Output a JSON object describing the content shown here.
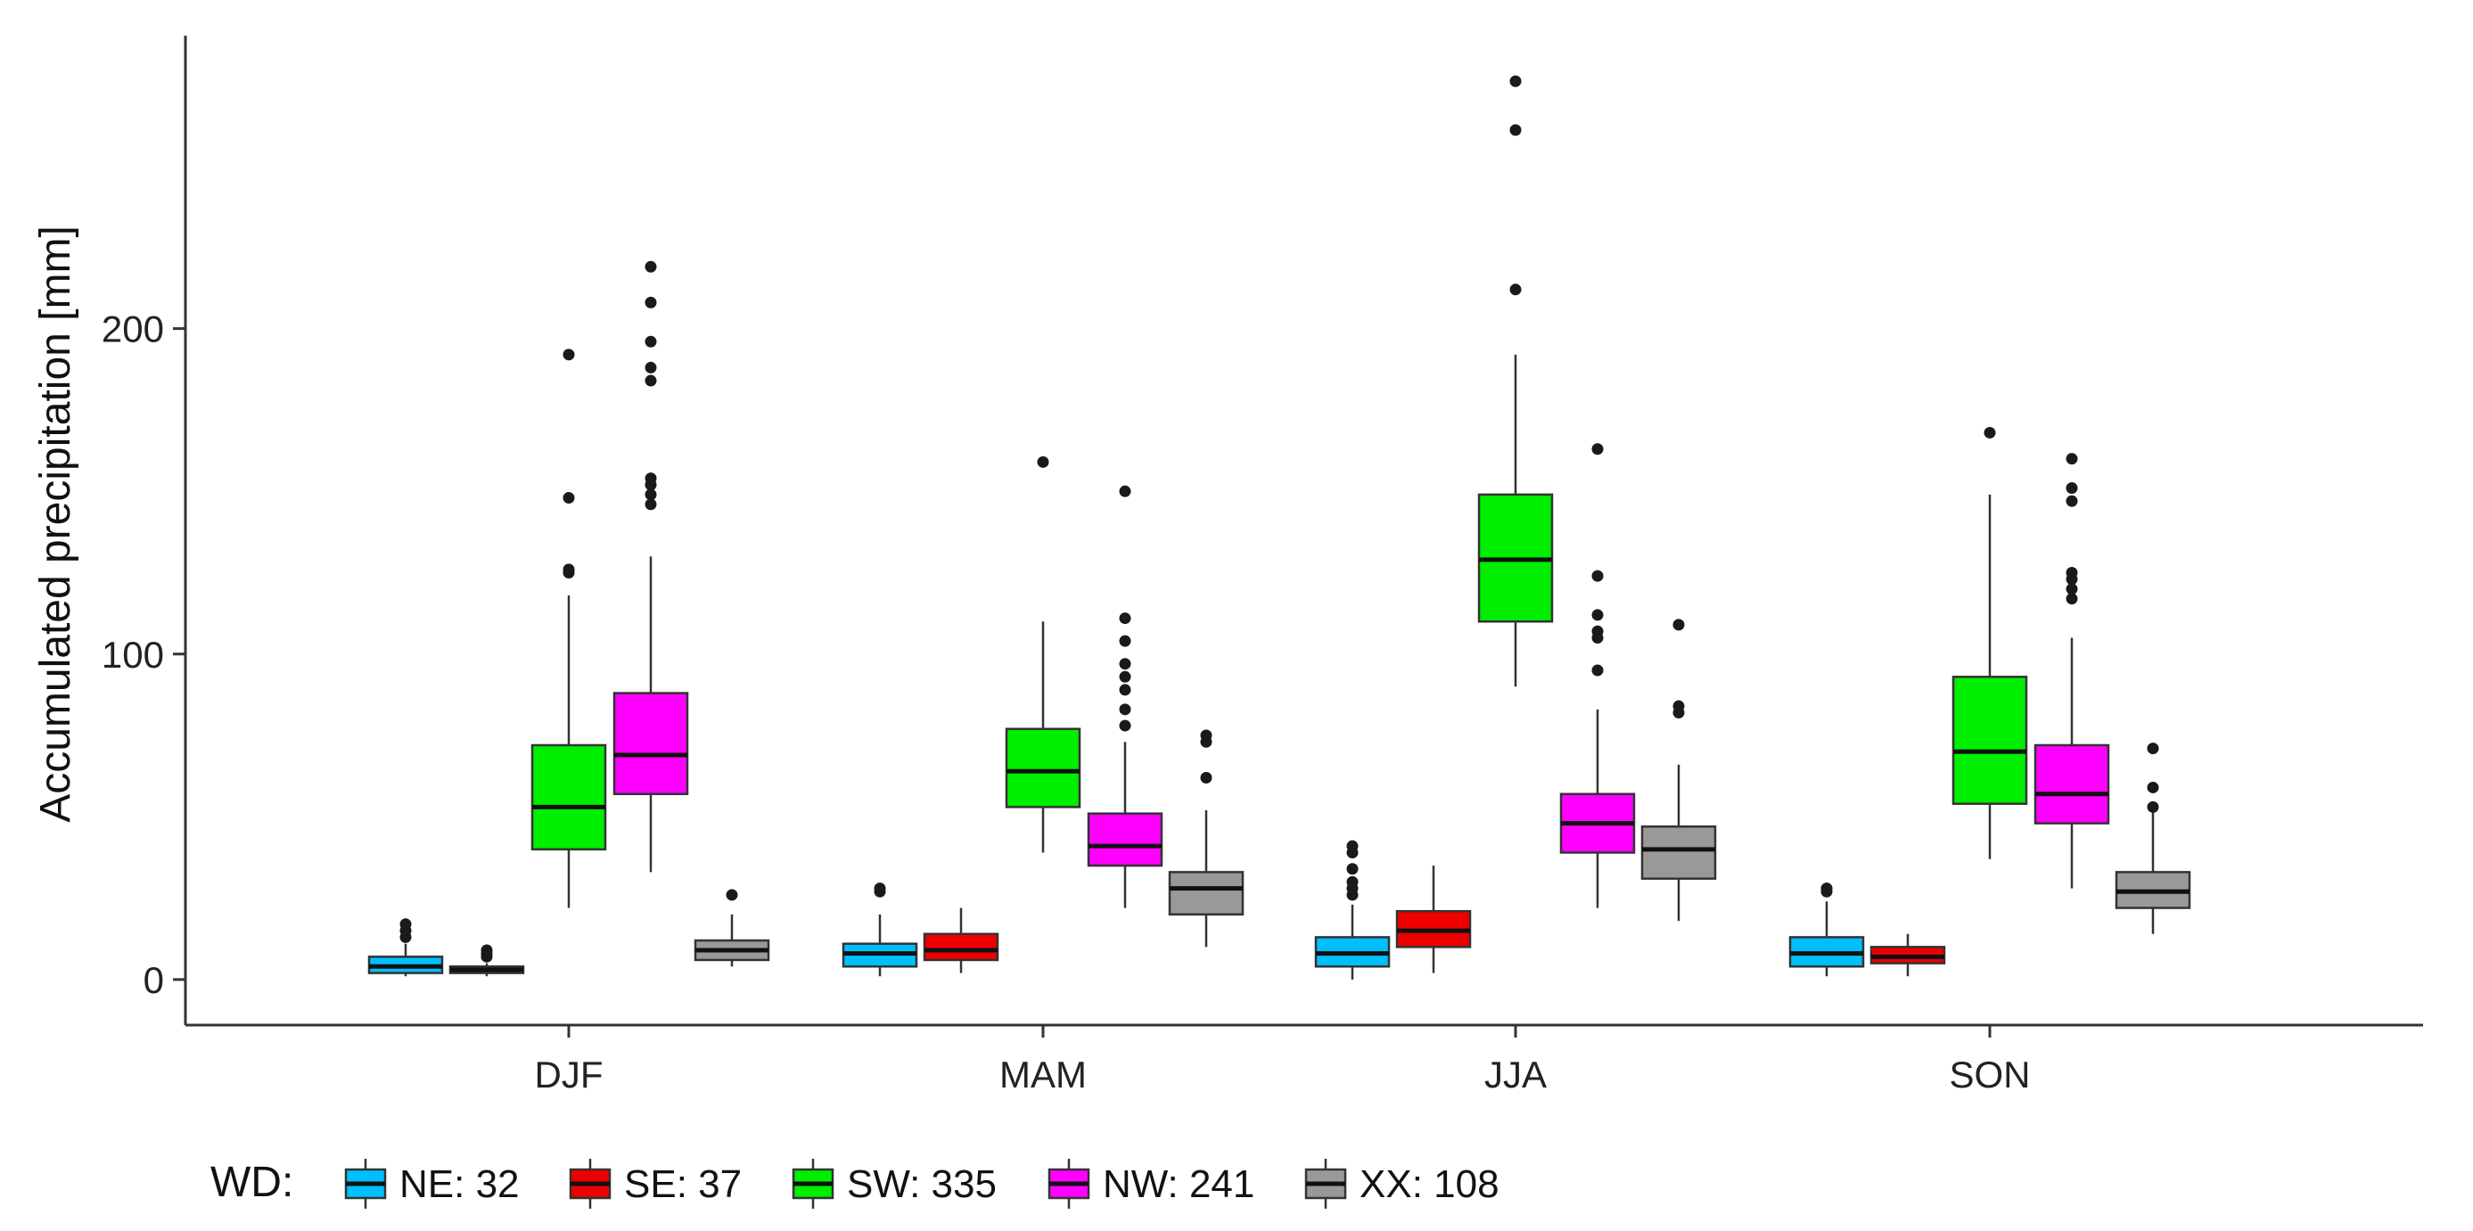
{
  "chart_data": {
    "type": "boxplot",
    "title": "",
    "xlabel": "",
    "ylabel": "Accumulated precipitation [mm]",
    "ylim": [
      -14,
      290
    ],
    "yticks": [
      0,
      100,
      200
    ],
    "categories": [
      "DJF",
      "MAM",
      "JJA",
      "SON"
    ],
    "legend": {
      "title": "WD:",
      "placement": "bottom",
      "entries": [
        {
          "key": "NE",
          "label": "NE: 32",
          "color": "#00BFFF"
        },
        {
          "key": "SE",
          "label": "SE: 37",
          "color": "#EE0000"
        },
        {
          "key": "SW",
          "label": "SW: 335",
          "color": "#00EE00"
        },
        {
          "key": "NW",
          "label": "NW: 241",
          "color": "#FF00FF"
        },
        {
          "key": "XX",
          "label": "XX: 108",
          "color": "#999999"
        }
      ]
    },
    "series": [
      {
        "name": "NE",
        "color": "#00BFFF",
        "boxes": [
          {
            "category": "DJF",
            "min": 1,
            "q1": 2,
            "median": 4,
            "q3": 7,
            "max": 11,
            "outliers": [
              13,
              15,
              17
            ]
          },
          {
            "category": "MAM",
            "min": 1,
            "q1": 4,
            "median": 8,
            "q3": 11,
            "max": 20,
            "outliers": [
              27,
              28
            ]
          },
          {
            "category": "JJA",
            "min": 0,
            "q1": 4,
            "median": 8,
            "q3": 13,
            "max": 23,
            "outliers": [
              26,
              28,
              30,
              34,
              39,
              41
            ]
          },
          {
            "category": "SON",
            "min": 1,
            "q1": 4,
            "median": 8,
            "q3": 13,
            "max": 24,
            "outliers": [
              27,
              28
            ]
          }
        ]
      },
      {
        "name": "SE",
        "color": "#EE0000",
        "boxes": [
          {
            "category": "DJF",
            "min": 1,
            "q1": 2,
            "median": 3,
            "q3": 4,
            "max": 5,
            "outliers": [
              7,
              8,
              9
            ]
          },
          {
            "category": "MAM",
            "min": 2,
            "q1": 6,
            "median": 9,
            "q3": 14,
            "max": 22,
            "outliers": []
          },
          {
            "category": "JJA",
            "min": 2,
            "q1": 10,
            "median": 15,
            "q3": 21,
            "max": 35,
            "outliers": []
          },
          {
            "category": "SON",
            "min": 1,
            "q1": 5,
            "median": 7,
            "q3": 10,
            "max": 14,
            "outliers": []
          }
        ]
      },
      {
        "name": "SW",
        "color": "#00EE00",
        "boxes": [
          {
            "category": "DJF",
            "min": 22,
            "q1": 40,
            "median": 53,
            "q3": 72,
            "max": 118,
            "outliers": [
              125,
              126,
              148,
              192
            ]
          },
          {
            "category": "MAM",
            "min": 39,
            "q1": 53,
            "median": 64,
            "q3": 77,
            "max": 110,
            "outliers": [
              159
            ]
          },
          {
            "category": "JJA",
            "min": 90,
            "q1": 110,
            "median": 129,
            "q3": 149,
            "max": 192,
            "outliers": [
              212,
              261,
              276
            ]
          },
          {
            "category": "SON",
            "min": 37,
            "q1": 54,
            "median": 70,
            "q3": 93,
            "max": 149,
            "outliers": [
              168
            ]
          }
        ]
      },
      {
        "name": "NW",
        "color": "#FF00FF",
        "boxes": [
          {
            "category": "DJF",
            "min": 33,
            "q1": 57,
            "median": 69,
            "q3": 88,
            "max": 130,
            "outliers": [
              146,
              149,
              152,
              154,
              184,
              188,
              196,
              208,
              219
            ]
          },
          {
            "category": "MAM",
            "min": 22,
            "q1": 35,
            "median": 41,
            "q3": 51,
            "max": 73,
            "outliers": [
              78,
              83,
              89,
              93,
              97,
              104,
              111,
              150
            ]
          },
          {
            "category": "JJA",
            "min": 22,
            "q1": 39,
            "median": 48,
            "q3": 57,
            "max": 83,
            "outliers": [
              95,
              105,
              107,
              112,
              124,
              163
            ]
          },
          {
            "category": "SON",
            "min": 28,
            "q1": 48,
            "median": 57,
            "q3": 72,
            "max": 105,
            "outliers": [
              117,
              120,
              123,
              125,
              147,
              151,
              160
            ]
          }
        ]
      },
      {
        "name": "XX",
        "color": "#999999",
        "boxes": [
          {
            "category": "DJF",
            "min": 4,
            "q1": 6,
            "median": 9,
            "q3": 12,
            "max": 20,
            "outliers": [
              26
            ]
          },
          {
            "category": "MAM",
            "min": 10,
            "q1": 20,
            "median": 28,
            "q3": 33,
            "max": 52,
            "outliers": [
              62,
              73,
              75
            ]
          },
          {
            "category": "JJA",
            "min": 18,
            "q1": 31,
            "median": 40,
            "q3": 47,
            "max": 66,
            "outliers": [
              82,
              84,
              109
            ]
          },
          {
            "category": "SON",
            "min": 14,
            "q1": 22,
            "median": 27,
            "q3": 33,
            "max": 52,
            "outliers": [
              53,
              59,
              71
            ]
          }
        ]
      }
    ]
  }
}
